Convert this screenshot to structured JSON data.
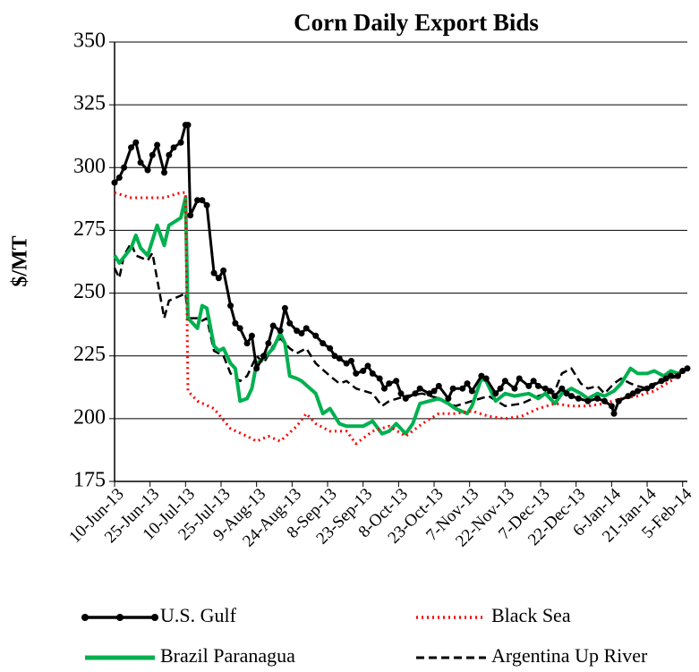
{
  "chart_data": {
    "type": "line",
    "title": "Corn Daily Export Bids",
    "y_label": "$/MT",
    "xlim": [
      "2013-06-10",
      "2014-02-07"
    ],
    "xticks": [
      {
        "value": "2013-06-10",
        "label": "10-Jun-13"
      },
      {
        "value": "2013-06-25",
        "label": "25-Jun-13"
      },
      {
        "value": "2013-07-10",
        "label": "10-Jul-13"
      },
      {
        "value": "2013-07-25",
        "label": "25-Jul-13"
      },
      {
        "value": "2013-08-09",
        "label": "9-Aug-13"
      },
      {
        "value": "2013-08-24",
        "label": "24-Aug-13"
      },
      {
        "value": "2013-09-08",
        "label": "8-Sep-13"
      },
      {
        "value": "2013-09-23",
        "label": "23-Sep-13"
      },
      {
        "value": "2013-10-08",
        "label": "8-Oct-13"
      },
      {
        "value": "2013-10-23",
        "label": "23-Oct-13"
      },
      {
        "value": "2013-11-07",
        "label": "7-Nov-13"
      },
      {
        "value": "2013-11-22",
        "label": "22-Nov-13"
      },
      {
        "value": "2013-12-07",
        "label": "7-Dec-13"
      },
      {
        "value": "2013-12-22",
        "label": "22-Dec-13"
      },
      {
        "value": "2014-01-06",
        "label": "6-Jan-14"
      },
      {
        "value": "2014-01-21",
        "label": "21-Jan-14"
      },
      {
        "value": "2014-02-05",
        "label": "5-Feb-14"
      }
    ],
    "ylim": [
      175,
      350
    ],
    "yticks": [
      175,
      200,
      225,
      250,
      275,
      300,
      325,
      350
    ],
    "grid": true,
    "legend": "bottom",
    "series": [
      {
        "name": "U.S. Gulf",
        "color": "#000000",
        "line_style": "solid",
        "marker": "circle",
        "x": [
          "2013-06-10",
          "2013-06-12",
          "2013-06-14",
          "2013-06-17",
          "2013-06-19",
          "2013-06-21",
          "2013-06-24",
          "2013-06-26",
          "2013-06-28",
          "2013-07-01",
          "2013-07-03",
          "2013-07-05",
          "2013-07-08",
          "2013-07-10",
          "2013-07-11",
          "2013-07-12",
          "2013-07-15",
          "2013-07-17",
          "2013-07-19",
          "2013-07-22",
          "2013-07-24",
          "2013-07-26",
          "2013-07-29",
          "2013-07-31",
          "2013-08-02",
          "2013-08-05",
          "2013-08-07",
          "2013-08-09",
          "2013-08-12",
          "2013-08-14",
          "2013-08-16",
          "2013-08-19",
          "2013-08-21",
          "2013-08-23",
          "2013-08-26",
          "2013-08-28",
          "2013-08-30",
          "2013-09-03",
          "2013-09-06",
          "2013-09-09",
          "2013-09-11",
          "2013-09-13",
          "2013-09-16",
          "2013-09-18",
          "2013-09-20",
          "2013-09-23",
          "2013-09-25",
          "2013-09-27",
          "2013-09-30",
          "2013-10-02",
          "2013-10-04",
          "2013-10-07",
          "2013-10-09",
          "2013-10-11",
          "2013-10-15",
          "2013-10-17",
          "2013-10-21",
          "2013-10-23",
          "2013-10-25",
          "2013-10-29",
          "2013-10-31",
          "2013-11-04",
          "2013-11-06",
          "2013-11-08",
          "2013-11-12",
          "2013-11-14",
          "2013-11-18",
          "2013-11-20",
          "2013-11-22",
          "2013-11-26",
          "2013-11-28",
          "2013-12-02",
          "2013-12-04",
          "2013-12-06",
          "2013-12-09",
          "2013-12-11",
          "2013-12-13",
          "2013-12-16",
          "2013-12-18",
          "2013-12-20",
          "2013-12-23",
          "2013-12-27",
          "2013-12-31",
          "2014-01-03",
          "2014-01-06",
          "2014-01-07",
          "2014-01-09",
          "2014-01-13",
          "2014-01-15",
          "2014-01-17",
          "2014-01-21",
          "2014-01-23",
          "2014-01-27",
          "2014-01-29",
          "2014-01-31",
          "2014-02-03",
          "2014-02-05",
          "2014-02-07"
        ],
        "values": [
          294,
          296,
          300,
          308,
          310,
          302,
          299,
          305,
          309,
          298,
          305,
          308,
          310,
          317,
          317,
          281,
          287,
          287,
          285,
          258,
          256,
          259,
          245,
          238,
          236,
          230,
          233,
          220,
          225,
          230,
          237,
          235,
          244,
          238,
          235,
          234,
          236,
          233,
          230,
          228,
          225,
          224,
          222,
          223,
          218,
          219,
          221,
          218,
          216,
          212,
          214,
          215,
          210,
          208,
          210,
          212,
          210,
          211,
          213,
          208,
          212,
          212,
          214,
          211,
          217,
          216,
          210,
          212,
          215,
          212,
          216,
          213,
          215,
          213,
          212,
          211,
          209,
          212,
          210,
          209,
          208,
          207,
          208,
          207,
          205,
          202,
          207,
          209,
          210,
          211,
          212,
          213,
          215,
          216,
          217,
          217,
          219,
          220
        ]
      },
      {
        "name": "Black Sea",
        "color": "#ff0000",
        "line_style": "dotted",
        "x": [
          "2013-06-10",
          "2013-06-17",
          "2013-06-24",
          "2013-07-01",
          "2013-07-08",
          "2013-07-10",
          "2013-07-11",
          "2013-07-15",
          "2013-07-22",
          "2013-07-29",
          "2013-08-05",
          "2013-08-09",
          "2013-08-14",
          "2013-08-19",
          "2013-08-26",
          "2013-08-30",
          "2013-09-03",
          "2013-09-09",
          "2013-09-16",
          "2013-09-20",
          "2013-09-27",
          "2013-10-04",
          "2013-10-11",
          "2013-10-18",
          "2013-10-25",
          "2013-11-01",
          "2013-11-08",
          "2013-11-15",
          "2013-11-22",
          "2013-11-29",
          "2013-12-06",
          "2013-12-13",
          "2013-12-20",
          "2013-12-27",
          "2014-01-03",
          "2014-01-10",
          "2014-01-17",
          "2014-01-24",
          "2014-01-31",
          "2014-02-07"
        ],
        "values": [
          290,
          288,
          288,
          288,
          290,
          290,
          211,
          207,
          204,
          196,
          193,
          191,
          193,
          191,
          197,
          202,
          198,
          195,
          195,
          190,
          195,
          197,
          193,
          198,
          202,
          202,
          203,
          201,
          200,
          201,
          204,
          206,
          205,
          205,
          206,
          208,
          209,
          211,
          215,
          220
        ]
      },
      {
        "name": "Brazil Paranagua",
        "color": "#00b050",
        "line_style": "solid",
        "x": [
          "2013-06-10",
          "2013-06-12",
          "2013-06-17",
          "2013-06-19",
          "2013-06-21",
          "2013-06-24",
          "2013-06-28",
          "2013-07-01",
          "2013-07-03",
          "2013-07-08",
          "2013-07-10",
          "2013-07-11",
          "2013-07-15",
          "2013-07-17",
          "2013-07-19",
          "2013-07-22",
          "2013-07-24",
          "2013-07-26",
          "2013-07-29",
          "2013-07-31",
          "2013-08-02",
          "2013-08-05",
          "2013-08-07",
          "2013-08-09",
          "2013-08-12",
          "2013-08-14",
          "2013-08-16",
          "2013-08-19",
          "2013-08-21",
          "2013-08-23",
          "2013-08-26",
          "2013-08-28",
          "2013-09-03",
          "2013-09-06",
          "2013-09-09",
          "2013-09-13",
          "2013-09-16",
          "2013-09-20",
          "2013-09-23",
          "2013-09-27",
          "2013-10-01",
          "2013-10-04",
          "2013-10-07",
          "2013-10-11",
          "2013-10-14",
          "2013-10-17",
          "2013-10-21",
          "2013-10-25",
          "2013-10-29",
          "2013-11-01",
          "2013-11-06",
          "2013-11-08",
          "2013-11-12",
          "2013-11-14",
          "2013-11-18",
          "2013-11-22",
          "2013-11-26",
          "2013-12-02",
          "2013-12-06",
          "2013-12-09",
          "2013-12-13",
          "2013-12-16",
          "2013-12-20",
          "2013-12-24",
          "2013-12-27",
          "2013-12-31",
          "2014-01-03",
          "2014-01-07",
          "2014-01-10",
          "2014-01-14",
          "2014-01-17",
          "2014-01-21",
          "2014-01-24",
          "2014-01-28",
          "2014-01-31",
          "2014-02-03",
          "2014-02-07"
        ],
        "values": [
          265,
          262,
          268,
          273,
          268,
          265,
          277,
          269,
          277,
          280,
          288,
          240,
          236,
          245,
          244,
          229,
          227,
          228,
          222,
          220,
          207,
          208,
          212,
          222,
          224,
          226,
          228,
          234,
          230,
          217,
          216,
          215,
          210,
          202,
          204,
          198,
          197,
          197,
          197,
          199,
          194,
          195,
          198,
          194,
          198,
          206,
          207,
          208,
          206,
          204,
          202,
          205,
          216,
          215,
          207,
          210,
          209,
          210,
          208,
          210,
          206,
          210,
          212,
          210,
          208,
          210,
          209,
          211,
          214,
          220,
          218,
          218,
          219,
          217,
          219,
          218,
          220
        ]
      },
      {
        "name": "Argentina Up River",
        "color": "#000000",
        "line_style": "dashed",
        "x": [
          "2013-06-10",
          "2013-06-12",
          "2013-06-14",
          "2013-06-17",
          "2013-06-19",
          "2013-06-24",
          "2013-06-26",
          "2013-07-01",
          "2013-07-03",
          "2013-07-08",
          "2013-07-10",
          "2013-07-11",
          "2013-07-15",
          "2013-07-17",
          "2013-07-19",
          "2013-07-22",
          "2013-07-26",
          "2013-07-29",
          "2013-08-02",
          "2013-08-05",
          "2013-08-09",
          "2013-08-12",
          "2013-08-16",
          "2013-08-19",
          "2013-08-23",
          "2013-08-26",
          "2013-08-30",
          "2013-09-03",
          "2013-09-09",
          "2013-09-13",
          "2013-09-16",
          "2013-09-20",
          "2013-09-27",
          "2013-10-01",
          "2013-10-04",
          "2013-10-11",
          "2013-10-18",
          "2013-10-25",
          "2013-11-01",
          "2013-11-08",
          "2013-11-15",
          "2013-11-22",
          "2013-11-29",
          "2013-12-06",
          "2013-12-13",
          "2013-12-16",
          "2013-12-20",
          "2013-12-24",
          "2013-12-27",
          "2013-12-31",
          "2014-01-03",
          "2014-01-07",
          "2014-01-10",
          "2014-01-14",
          "2014-01-17",
          "2014-01-21",
          "2014-01-24",
          "2014-01-28",
          "2014-01-31",
          "2014-02-03",
          "2014-02-07"
        ],
        "values": [
          260,
          256,
          265,
          270,
          265,
          263,
          266,
          240,
          247,
          249,
          250,
          240,
          240,
          239,
          240,
          227,
          225,
          218,
          215,
          217,
          225,
          222,
          229,
          232,
          228,
          226,
          228,
          222,
          217,
          214,
          215,
          212,
          210,
          205,
          207,
          209,
          210,
          208,
          205,
          207,
          209,
          205,
          206,
          209,
          211,
          218,
          220,
          214,
          212,
          213,
          210,
          214,
          216,
          214,
          213,
          212,
          214,
          215,
          216,
          217,
          220
        ]
      }
    ]
  }
}
